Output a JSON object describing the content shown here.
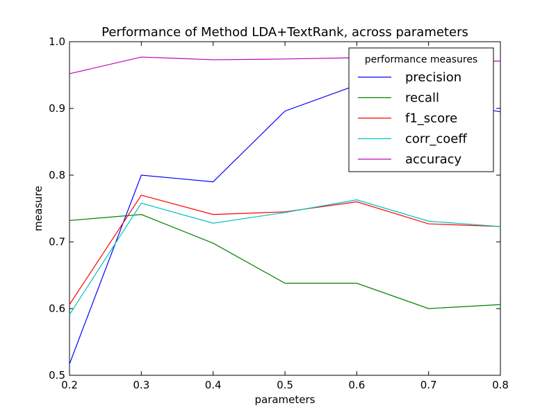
{
  "chart_data": {
    "type": "line",
    "title": "Performance of Method LDA+TextRank, across parameters",
    "xlabel": "parameters",
    "ylabel": "measure",
    "x": [
      0.2,
      0.3,
      0.4,
      0.5,
      0.6,
      0.7,
      0.8
    ],
    "xlim": [
      0.2,
      0.8
    ],
    "ylim": [
      0.5,
      1.0
    ],
    "xticks": [
      "0.2",
      "0.3",
      "0.4",
      "0.5",
      "0.6",
      "0.7",
      "0.8"
    ],
    "yticks": [
      "0.5",
      "0.6",
      "0.7",
      "0.8",
      "0.9",
      "1.0"
    ],
    "grid": false,
    "legend": {
      "title": "performance measures",
      "placement": "top-right"
    },
    "series": [
      {
        "name": "precision",
        "color": "#0000ff",
        "values": [
          0.517,
          0.8,
          0.79,
          0.896,
          0.935,
          0.912,
          0.895
        ]
      },
      {
        "name": "recall",
        "color": "#008000",
        "values": [
          0.732,
          0.741,
          0.698,
          0.638,
          0.638,
          0.6,
          0.606
        ]
      },
      {
        "name": "f1_score",
        "color": "#ff0000",
        "values": [
          0.606,
          0.77,
          0.741,
          0.745,
          0.76,
          0.727,
          0.723
        ]
      },
      {
        "name": "corr_coeff",
        "color": "#00bfbf",
        "values": [
          0.591,
          0.758,
          0.728,
          0.744,
          0.763,
          0.731,
          0.723
        ]
      },
      {
        "name": "accuracy",
        "color": "#bf00bf",
        "values": [
          0.952,
          0.977,
          0.973,
          0.974,
          0.976,
          0.97,
          0.971
        ]
      }
    ]
  }
}
